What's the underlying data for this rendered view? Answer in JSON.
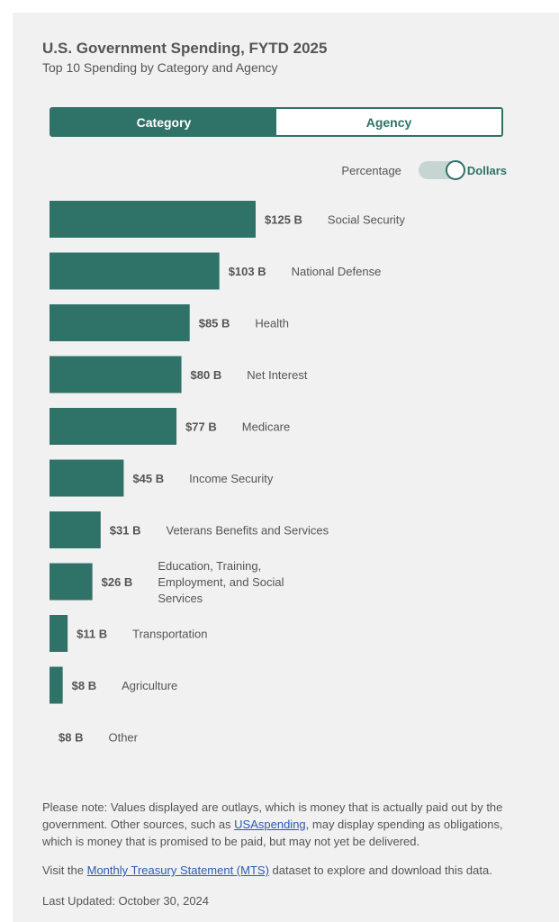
{
  "header": {
    "title": "U.S. Government Spending, FYTD 2025",
    "subtitle": "Top 10 Spending by Category and Agency"
  },
  "view_toggle": {
    "category_label": "Category",
    "agency_label": "Agency",
    "selected": "Category"
  },
  "unit_switch": {
    "left_label": "Percentage",
    "right_label": "Dollars",
    "selected": "Dollars"
  },
  "chart_data": {
    "type": "bar",
    "orientation": "horizontal",
    "unit": "B",
    "bar_color": "#2f7268",
    "max_value": 125,
    "categories": [
      "Social Security",
      "National Defense",
      "Health",
      "Net Interest",
      "Medicare",
      "Income Security",
      "Veterans Benefits and Services",
      "Education, Training, Employment, and Social Services",
      "Transportation",
      "Agriculture",
      "Other"
    ],
    "category_lines": [
      [
        "Social Security"
      ],
      [
        "National Defense"
      ],
      [
        "Health"
      ],
      [
        "Net Interest"
      ],
      [
        "Medicare"
      ],
      [
        "Income Security"
      ],
      [
        "Veterans Benefits and Services"
      ],
      [
        "Education, Training,",
        "Employment, and Social",
        "Services"
      ],
      [
        "Transportation"
      ],
      [
        "Agriculture"
      ],
      [
        "Other"
      ]
    ],
    "values": [
      125,
      103,
      85,
      80,
      77,
      45,
      31,
      26,
      11,
      8,
      8
    ],
    "value_labels": [
      "$125 B",
      "$103 B",
      "$85 B",
      "$80 B",
      "$77 B",
      "$45 B",
      "$31 B",
      "$26 B",
      "$11 B",
      "$8 B",
      "$8 B"
    ],
    "bar_visible": [
      true,
      true,
      true,
      true,
      true,
      true,
      true,
      true,
      true,
      true,
      false
    ]
  },
  "notes": {
    "note_prefix": "Please note: Values displayed are outlays, which is money that is actually paid out by the government. Other sources, such as ",
    "note_link": "USAspending",
    "note_suffix": ", may display spending as obligations, which is money that is promised to be paid, but may not yet be delivered.",
    "visit_prefix": "Visit the ",
    "visit_link": "Monthly Treasury Statement (MTS)",
    "visit_suffix": " dataset to explore and download this data.",
    "last_updated": "Last Updated: October 30, 2024"
  }
}
